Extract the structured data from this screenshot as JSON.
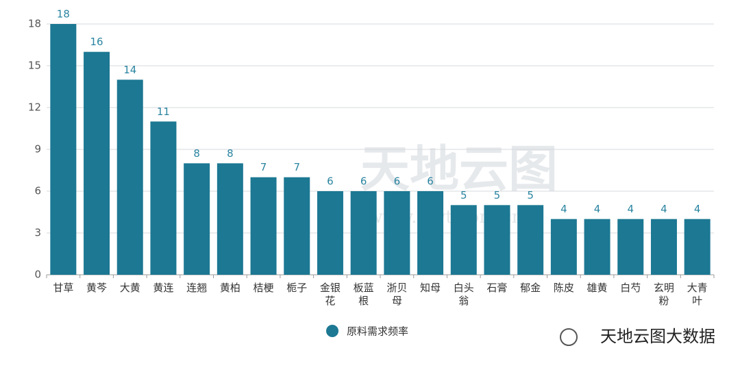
{
  "chart_data": {
    "type": "bar",
    "categories": [
      "甘草",
      "黄芩",
      "大黄",
      "黄连",
      "连翘",
      "黄柏",
      "桔梗",
      "栀子",
      "金银花",
      "板蓝根",
      "浙贝母",
      "知母",
      "白头翁",
      "石膏",
      "郁金",
      "陈皮",
      "雄黄",
      "白芍",
      "玄明粉",
      "大青叶"
    ],
    "series": [
      {
        "name": "原料需求频率",
        "color": "#1c7893",
        "values": [
          18,
          16,
          14,
          11,
          8,
          8,
          7,
          7,
          6,
          6,
          6,
          6,
          5,
          5,
          5,
          4,
          4,
          4,
          4,
          4
        ]
      }
    ],
    "ylim": [
      0,
      18
    ],
    "yticks": [
      0,
      3,
      6,
      9,
      12,
      15,
      18
    ],
    "grid": true,
    "legend": "bottom",
    "watermark": {
      "center": "天地云图",
      "url": "www.tdyt.com.cn",
      "corner": "天地云图大数据"
    }
  }
}
